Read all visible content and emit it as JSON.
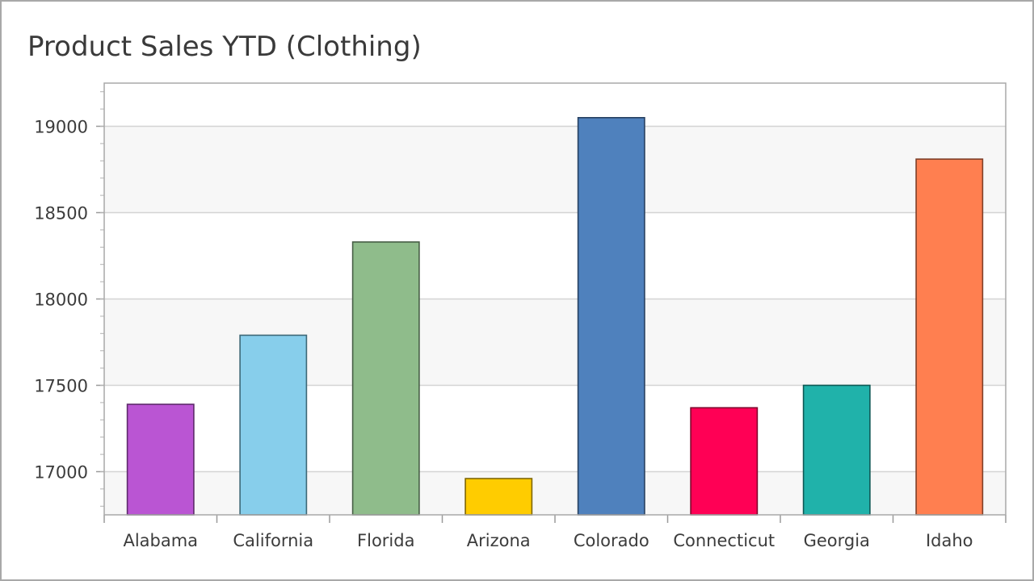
{
  "chart_data": {
    "type": "bar",
    "title": "Product Sales YTD (Clothing)",
    "xlabel": "",
    "ylabel": "",
    "categories": [
      "Alabama",
      "California",
      "Florida",
      "Arizona",
      "Colorado",
      "Connecticut",
      "Georgia",
      "Idaho"
    ],
    "values": [
      17390,
      17790,
      18330,
      16960,
      19050,
      17370,
      17500,
      18810
    ],
    "colors": [
      "#BA55D3",
      "#87CEEB",
      "#8FBC8B",
      "#FFCC00",
      "#4F81BD",
      "#FF0055",
      "#20B2AA",
      "#FF7F50"
    ],
    "stroke_colors": [
      "#5E2A6B",
      "#3E6877",
      "#475E46",
      "#7F6600",
      "#274060",
      "#7F002A",
      "#105955",
      "#7F3F28"
    ],
    "ylim": [
      16750,
      19250
    ],
    "yticks": [
      17000,
      17500,
      18000,
      18500,
      19000
    ],
    "grid": true,
    "legend": "none"
  }
}
